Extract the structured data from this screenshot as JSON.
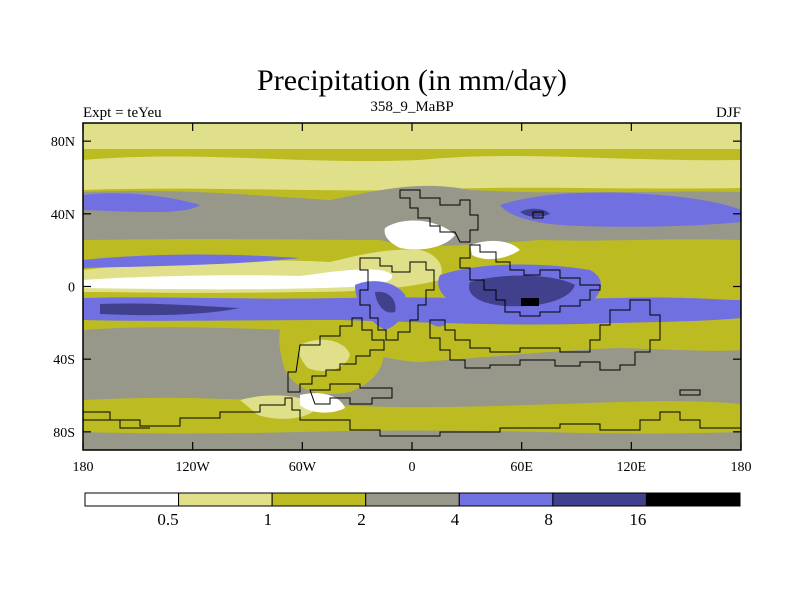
{
  "chart_data": {
    "type": "heatmap",
    "title": "Precipitation (in mm/day)",
    "subtitle_left": "Expt = teYeu",
    "subtitle_center": "358_9_MaBP",
    "subtitle_right": "DJF",
    "x_range": [
      -180,
      180
    ],
    "y_range": [
      -90,
      90
    ],
    "x_ticks": [
      {
        "value": -180,
        "label": "180"
      },
      {
        "value": -120,
        "label": "120W"
      },
      {
        "value": -60,
        "label": "60W"
      },
      {
        "value": 0,
        "label": "0"
      },
      {
        "value": 60,
        "label": "60E"
      },
      {
        "value": 120,
        "label": "120E"
      },
      {
        "value": 180,
        "label": "180"
      }
    ],
    "y_ticks": [
      {
        "value": 80,
        "label": "80N"
      },
      {
        "value": 40,
        "label": "40N"
      },
      {
        "value": 0,
        "label": "0"
      },
      {
        "value": -40,
        "label": "40S"
      },
      {
        "value": -80,
        "label": "80S"
      }
    ],
    "colorbar": {
      "thresholds": [
        "0.5",
        "1",
        "2",
        "4",
        "8",
        "16"
      ],
      "colors": [
        "#ffffff",
        "#e0e08a",
        "#bcbc22",
        "#97978a",
        "#7070e0",
        "#40408c",
        "#000000"
      ]
    }
  }
}
